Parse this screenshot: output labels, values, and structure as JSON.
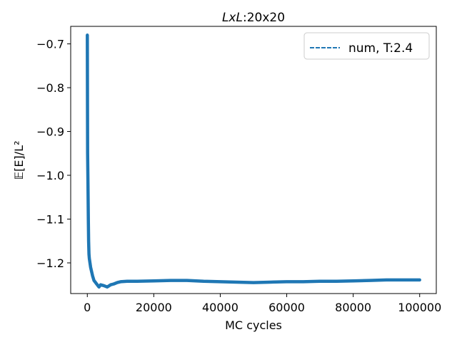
{
  "chart_data": {
    "type": "line",
    "title": "LxL:20x20",
    "title_italic_part": "LxL",
    "title_plain_part": ":20x20",
    "xlabel": "MC cycles",
    "ylabel": "𝔼[E]/L²",
    "xlim": [
      -5000,
      105000
    ],
    "ylim": [
      -1.27,
      -0.66
    ],
    "xticks": [
      0,
      20000,
      40000,
      60000,
      80000,
      100000
    ],
    "xtick_labels": [
      "0",
      "20000",
      "40000",
      "60000",
      "80000",
      "100000"
    ],
    "yticks": [
      -0.7,
      -0.8,
      -0.9,
      -1.0,
      -1.1,
      -1.2
    ],
    "ytick_labels": [
      "−0.7",
      "−0.8",
      "−0.9",
      "−1.0",
      "−1.1",
      "−1.2"
    ],
    "grid": false,
    "legend_position": "top-right",
    "series": [
      {
        "name": "num, T:2.4",
        "color": "#1f77b4",
        "line_style": "dashed",
        "x": [
          0,
          50,
          100,
          200,
          300,
          400,
          500,
          600,
          800,
          1000,
          1300,
          1600,
          2000,
          2500,
          3000,
          3500,
          4000,
          5000,
          6000,
          7000,
          8000,
          9000,
          10000,
          12000,
          15000,
          20000,
          25000,
          30000,
          35000,
          40000,
          45000,
          50000,
          55000,
          60000,
          65000,
          70000,
          75000,
          80000,
          85000,
          90000,
          95000,
          100000
        ],
        "y": [
          -0.68,
          -0.83,
          -0.95,
          -1.02,
          -1.1,
          -1.15,
          -1.18,
          -1.19,
          -1.2,
          -1.21,
          -1.22,
          -1.23,
          -1.24,
          -1.245,
          -1.25,
          -1.255,
          -1.25,
          -1.252,
          -1.255,
          -1.25,
          -1.248,
          -1.245,
          -1.243,
          -1.242,
          -1.242,
          -1.241,
          -1.24,
          -1.24,
          -1.242,
          -1.243,
          -1.244,
          -1.245,
          -1.244,
          -1.243,
          -1.243,
          -1.242,
          -1.242,
          -1.241,
          -1.24,
          -1.239,
          -1.239,
          -1.239
        ]
      }
    ]
  }
}
